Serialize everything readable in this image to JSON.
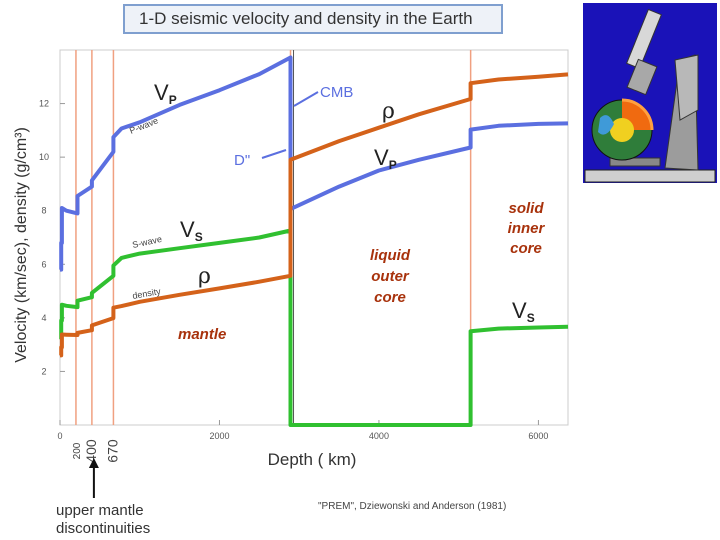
{
  "chart_data": {
    "type": "line",
    "title": "1-D seismic velocity and density in the Earth",
    "xlabel": "Depth ( km)",
    "ylabel": "Velocity (km/sec), density (g/cm³)",
    "xlim": [
      0,
      6371
    ],
    "ylim": [
      0,
      14
    ],
    "x_ticks": [
      "0",
      "2000",
      "4000",
      "6000"
    ],
    "y_ticks": [
      "2",
      "4",
      "6",
      "8",
      "10",
      "12"
    ],
    "discontinuity_labels": [
      "200",
      "400",
      "670"
    ],
    "series": [
      {
        "name": "Vp",
        "color": "#5b6fe0",
        "x": [
          0,
          15,
          15,
          24,
          24,
          80,
          220,
          220,
          400,
          400,
          670,
          670,
          771,
          1000,
          1500,
          2000,
          2500,
          2891,
          2891,
          3500,
          4000,
          4500,
          5150,
          5150,
          5500,
          6000,
          6371
        ],
        "y": [
          5.8,
          5.8,
          6.8,
          6.8,
          8.1,
          8.0,
          7.9,
          8.55,
          8.9,
          9.13,
          10.2,
          10.75,
          11.07,
          11.3,
          11.95,
          12.5,
          13.1,
          13.72,
          8.06,
          8.9,
          9.5,
          9.9,
          10.36,
          11.03,
          11.17,
          11.24,
          11.26
        ]
      },
      {
        "name": "Vs",
        "color": "#30c030",
        "x": [
          0,
          15,
          15,
          24,
          24,
          80,
          220,
          220,
          400,
          400,
          670,
          670,
          771,
          1000,
          1500,
          2000,
          2500,
          2891,
          2891,
          5150,
          5150,
          5500,
          6000,
          6371
        ],
        "y": [
          3.2,
          3.2,
          3.9,
          3.9,
          4.49,
          4.45,
          4.4,
          4.64,
          4.77,
          4.93,
          5.57,
          5.95,
          6.24,
          6.4,
          6.6,
          6.8,
          7.0,
          7.26,
          0.0,
          0.0,
          3.5,
          3.6,
          3.64,
          3.67
        ]
      },
      {
        "name": "density",
        "color": "#d4621a",
        "x": [
          0,
          15,
          15,
          24,
          24,
          80,
          220,
          220,
          400,
          400,
          670,
          670,
          771,
          1000,
          1500,
          2000,
          2500,
          2891,
          2891,
          3500,
          4000,
          4500,
          5150,
          5150,
          5500,
          6000,
          6371
        ],
        "y": [
          2.6,
          2.6,
          2.9,
          2.9,
          3.38,
          3.37,
          3.36,
          3.44,
          3.54,
          3.72,
          3.99,
          4.38,
          4.44,
          4.6,
          4.86,
          5.1,
          5.35,
          5.57,
          9.9,
          10.6,
          11.1,
          11.6,
          12.17,
          12.76,
          12.9,
          13.0,
          13.09
        ]
      }
    ],
    "vertical_markers": [
      200,
      400,
      670,
      2891,
      5150
    ],
    "series_labels": {
      "vp_mantle": "VP",
      "vp_outer_core": "VP",
      "vs_mantle": "VS",
      "vs_inner_core": "VS",
      "rho_mantle": "ρ",
      "rho_core": "ρ",
      "pwave": "P-wave",
      "swave": "S-wave",
      "density": "density"
    },
    "region_labels": {
      "mantle": "mantle",
      "outer_core": [
        "liquid",
        "outer",
        "core"
      ],
      "inner_core": [
        "solid",
        "inner",
        "core"
      ]
    },
    "annotations": {
      "cmb": "CMB",
      "dpp": "D\""
    }
  },
  "page": {
    "upper_mantle_label": [
      "upper mantle",
      "discontinuities"
    ],
    "citation": "\"PREM\",    Dziewonski and Anderson (1981)"
  },
  "colors": {
    "vp": "#5b6fe0",
    "vs": "#30c030",
    "rho": "#d4621a",
    "region": "#a8320c",
    "marker": "#f0a080",
    "cmb_line": "#555555"
  }
}
